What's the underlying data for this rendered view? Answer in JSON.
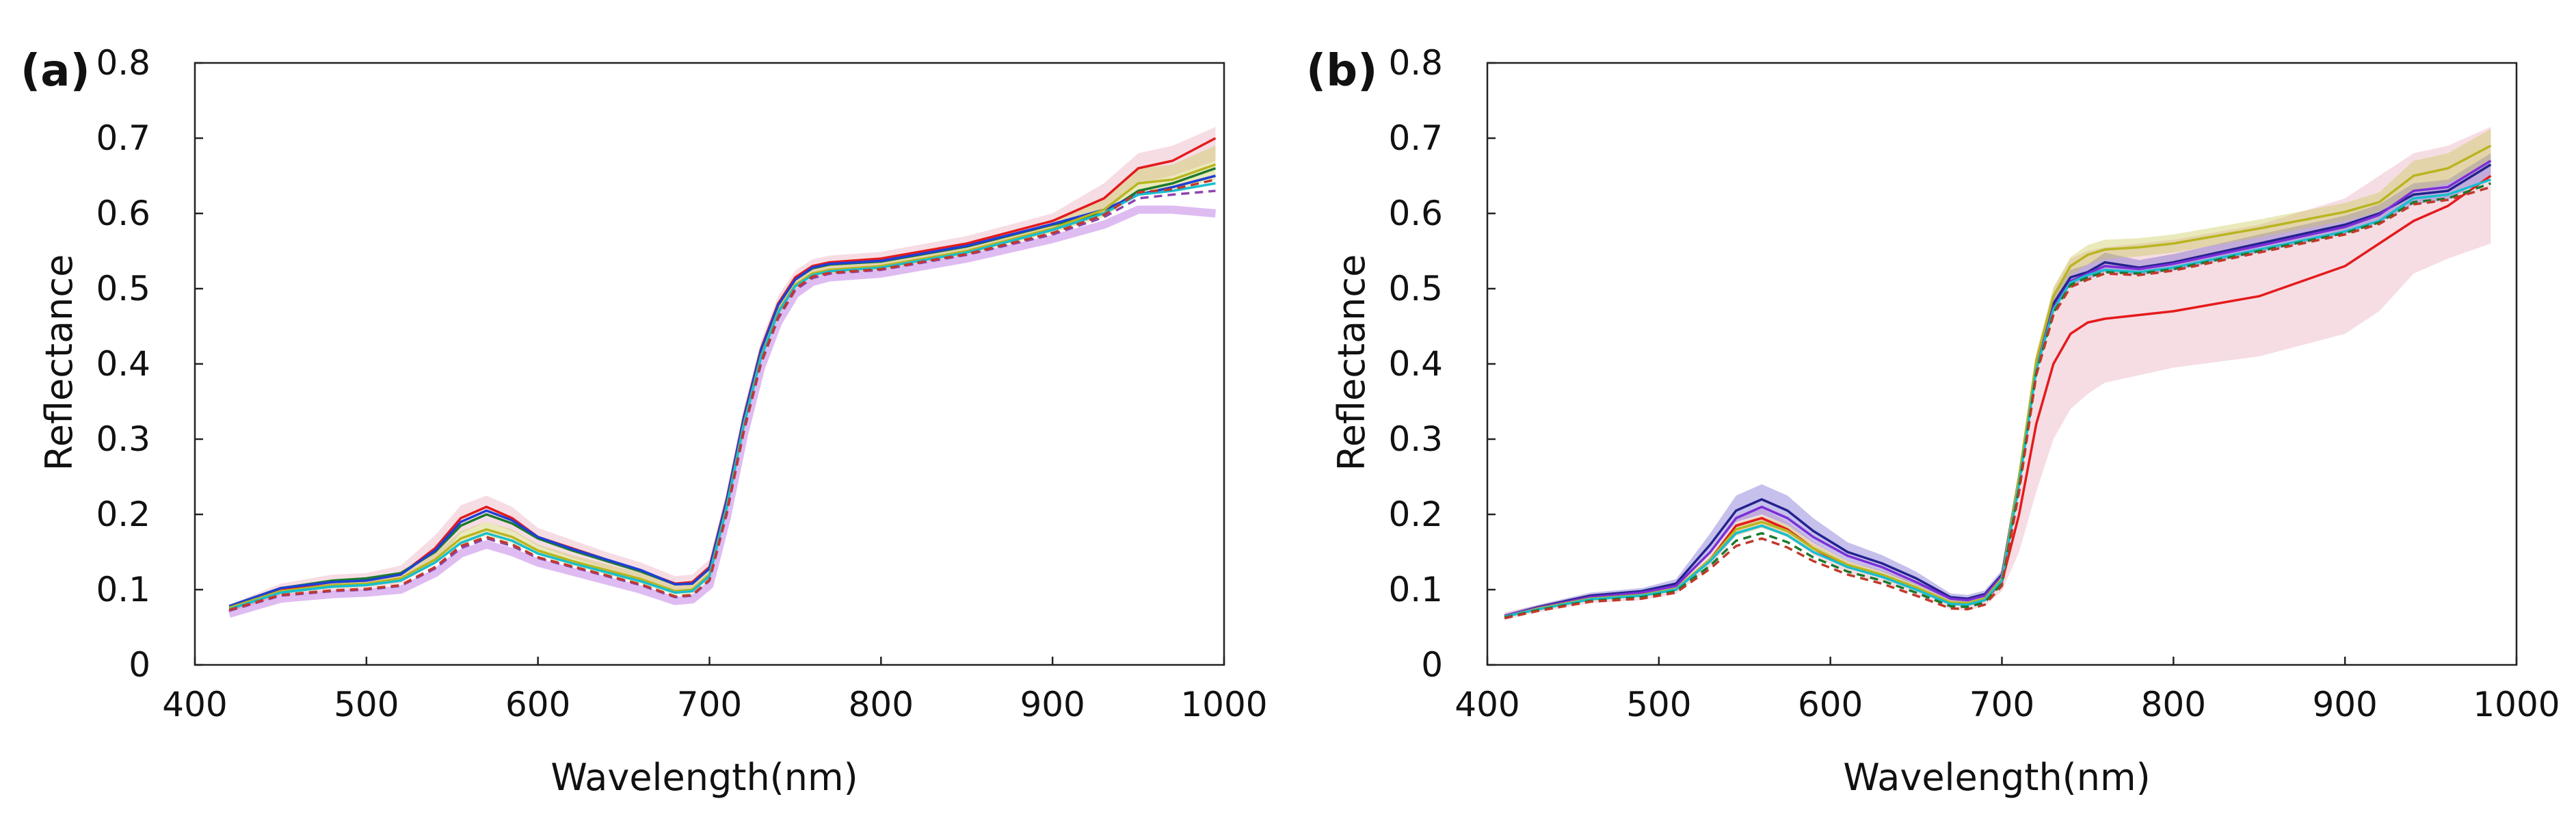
{
  "chart_data": [
    {
      "type": "line",
      "panel_label": "(a)",
      "xlabel": "Wavelength(nm)",
      "ylabel": "Reflectance",
      "xlim": [
        400,
        1000
      ],
      "ylim": [
        0,
        0.8
      ],
      "xticks": [
        400,
        500,
        600,
        700,
        800,
        900,
        1000
      ],
      "xtick_labels": [
        "400",
        "500",
        "600",
        "700",
        "800",
        "900",
        "1000"
      ],
      "yticks": [
        0,
        0.1,
        0.2,
        0.3,
        0.4,
        0.5,
        0.6,
        0.7,
        0.8
      ],
      "ytick_labels": [
        "0",
        "0.1",
        "0.2",
        "0.3",
        "0.4",
        "0.5",
        "0.6",
        "0.7",
        "0.8"
      ],
      "x": [
        420,
        450,
        480,
        500,
        520,
        540,
        555,
        570,
        585,
        600,
        620,
        640,
        660,
        680,
        690,
        700,
        710,
        720,
        730,
        740,
        750,
        760,
        770,
        800,
        850,
        900,
        930,
        950,
        970,
        995
      ],
      "series": [
        {
          "name": "red",
          "color": "#e41a1c",
          "dash": false,
          "values": [
            0.075,
            0.1,
            0.11,
            0.112,
            0.12,
            0.155,
            0.195,
            0.21,
            0.195,
            0.17,
            0.155,
            0.14,
            0.125,
            0.108,
            0.11,
            0.13,
            0.22,
            0.33,
            0.42,
            0.48,
            0.515,
            0.53,
            0.535,
            0.54,
            0.56,
            0.59,
            0.62,
            0.66,
            0.67,
            0.7
          ]
        },
        {
          "name": "dark-green",
          "color": "#1b7a2e",
          "dash": false,
          "values": [
            0.078,
            0.102,
            0.112,
            0.115,
            0.122,
            0.15,
            0.185,
            0.2,
            0.188,
            0.168,
            0.152,
            0.138,
            0.124,
            0.107,
            0.108,
            0.128,
            0.218,
            0.328,
            0.418,
            0.478,
            0.512,
            0.527,
            0.532,
            0.536,
            0.556,
            0.585,
            0.6,
            0.63,
            0.64,
            0.66
          ]
        },
        {
          "name": "blue",
          "color": "#1f3fd6",
          "dash": false,
          "values": [
            0.078,
            0.102,
            0.11,
            0.112,
            0.12,
            0.152,
            0.19,
            0.205,
            0.192,
            0.17,
            0.154,
            0.14,
            0.126,
            0.107,
            0.108,
            0.128,
            0.218,
            0.328,
            0.418,
            0.478,
            0.512,
            0.528,
            0.533,
            0.537,
            0.557,
            0.586,
            0.605,
            0.625,
            0.635,
            0.65
          ]
        },
        {
          "name": "olive",
          "color": "#b8b520",
          "dash": false,
          "values": [
            0.076,
            0.098,
            0.106,
            0.108,
            0.115,
            0.14,
            0.168,
            0.18,
            0.17,
            0.152,
            0.138,
            0.126,
            0.114,
            0.098,
            0.1,
            0.12,
            0.21,
            0.32,
            0.41,
            0.47,
            0.505,
            0.52,
            0.525,
            0.53,
            0.55,
            0.58,
            0.605,
            0.64,
            0.645,
            0.665
          ]
        },
        {
          "name": "teal",
          "color": "#17becf",
          "dash": false,
          "values": [
            0.074,
            0.096,
            0.104,
            0.106,
            0.112,
            0.136,
            0.162,
            0.175,
            0.165,
            0.148,
            0.135,
            0.123,
            0.111,
            0.096,
            0.098,
            0.118,
            0.208,
            0.318,
            0.408,
            0.468,
            0.503,
            0.518,
            0.523,
            0.528,
            0.548,
            0.578,
            0.6,
            0.625,
            0.63,
            0.64
          ]
        },
        {
          "name": "purple-dashed",
          "color": "#8e44ad",
          "dash": true,
          "values": [
            0.072,
            0.092,
            0.098,
            0.1,
            0.105,
            0.128,
            0.155,
            0.168,
            0.158,
            0.142,
            0.13,
            0.118,
            0.106,
            0.09,
            0.092,
            0.112,
            0.2,
            0.31,
            0.4,
            0.46,
            0.498,
            0.514,
            0.52,
            0.525,
            0.545,
            0.572,
            0.595,
            0.62,
            0.625,
            0.63
          ]
        },
        {
          "name": "red-dashed",
          "color": "#c0392b",
          "dash": true,
          "values": [
            0.073,
            0.093,
            0.099,
            0.101,
            0.106,
            0.13,
            0.158,
            0.17,
            0.16,
            0.143,
            0.131,
            0.119,
            0.107,
            0.091,
            0.093,
            0.113,
            0.202,
            0.312,
            0.402,
            0.462,
            0.5,
            0.516,
            0.521,
            0.526,
            0.546,
            0.574,
            0.598,
            0.628,
            0.632,
            0.645
          ]
        }
      ],
      "bands": [
        {
          "name": "pink-band",
          "color": "#e8a6b6",
          "lower": [
            0.07,
            0.092,
            0.1,
            0.102,
            0.108,
            0.135,
            0.175,
            0.19,
            0.178,
            0.158,
            0.142,
            0.128,
            0.114,
            0.098,
            0.1,
            0.12,
            0.208,
            0.318,
            0.408,
            0.468,
            0.504,
            0.519,
            0.524,
            0.529,
            0.548,
            0.576,
            0.6,
            0.64,
            0.65,
            0.67
          ],
          "upper": [
            0.08,
            0.108,
            0.12,
            0.122,
            0.132,
            0.172,
            0.212,
            0.225,
            0.21,
            0.182,
            0.166,
            0.15,
            0.136,
            0.118,
            0.12,
            0.14,
            0.23,
            0.34,
            0.43,
            0.49,
            0.524,
            0.539,
            0.544,
            0.549,
            0.57,
            0.6,
            0.64,
            0.68,
            0.69,
            0.715
          ]
        },
        {
          "name": "violet-band",
          "color": "#b56be0",
          "lower": [
            0.068,
            0.088,
            0.094,
            0.096,
            0.1,
            0.122,
            0.148,
            0.16,
            0.15,
            0.136,
            0.124,
            0.112,
            0.1,
            0.085,
            0.087,
            0.106,
            0.195,
            0.305,
            0.395,
            0.455,
            0.493,
            0.509,
            0.515,
            0.52,
            0.54,
            0.566,
            0.585,
            0.605,
            0.605,
            0.6
          ]
        },
        {
          "name": "olive-band",
          "color": "#c8c450",
          "lower": [
            0.072,
            0.094,
            0.102,
            0.104,
            0.11,
            0.134,
            0.16,
            0.172,
            0.162,
            0.146,
            0.132,
            0.12,
            0.108,
            0.093,
            0.095,
            0.115,
            0.204,
            0.314,
            0.404,
            0.464,
            0.5,
            0.515,
            0.52,
            0.525,
            0.545,
            0.574,
            0.595,
            0.625,
            0.63,
            0.645
          ],
          "upper": [
            0.08,
            0.104,
            0.112,
            0.114,
            0.122,
            0.148,
            0.178,
            0.19,
            0.18,
            0.16,
            0.146,
            0.134,
            0.122,
            0.105,
            0.107,
            0.127,
            0.216,
            0.326,
            0.416,
            0.476,
            0.512,
            0.527,
            0.532,
            0.537,
            0.557,
            0.588,
            0.62,
            0.66,
            0.665,
            0.69
          ]
        }
      ]
    },
    {
      "type": "line",
      "panel_label": "(b)",
      "xlabel": "Wavelength(nm)",
      "ylabel": "Reflectance",
      "xlim": [
        400,
        1000
      ],
      "ylim": [
        0,
        0.8
      ],
      "xticks": [
        400,
        500,
        600,
        700,
        800,
        900,
        1000
      ],
      "xtick_labels": [
        "400",
        "500",
        "600",
        "700",
        "800",
        "900",
        "1000"
      ],
      "yticks": [
        0,
        0.1,
        0.2,
        0.3,
        0.4,
        0.5,
        0.6,
        0.7,
        0.8
      ],
      "ytick_labels": [
        "0",
        "0.1",
        "0.2",
        "0.3",
        "0.4",
        "0.5",
        "0.6",
        "0.7",
        "0.8"
      ],
      "x": [
        410,
        430,
        460,
        490,
        510,
        530,
        545,
        560,
        575,
        590,
        610,
        630,
        650,
        670,
        680,
        690,
        700,
        710,
        720,
        730,
        740,
        750,
        760,
        780,
        800,
        850,
        900,
        920,
        940,
        960,
        985
      ],
      "series": [
        {
          "name": "red",
          "color": "#e41a1c",
          "dash": false,
          "values": [
            0.065,
            0.075,
            0.088,
            0.092,
            0.1,
            0.14,
            0.185,
            0.195,
            0.18,
            0.155,
            0.13,
            0.118,
            0.102,
            0.082,
            0.08,
            0.086,
            0.11,
            0.2,
            0.32,
            0.4,
            0.44,
            0.455,
            0.46,
            0.465,
            0.47,
            0.49,
            0.53,
            0.56,
            0.59,
            0.61,
            0.65
          ]
        },
        {
          "name": "dark-blue",
          "color": "#23238e",
          "dash": false,
          "values": [
            0.065,
            0.077,
            0.092,
            0.098,
            0.108,
            0.16,
            0.205,
            0.22,
            0.205,
            0.178,
            0.15,
            0.135,
            0.115,
            0.09,
            0.088,
            0.094,
            0.12,
            0.25,
            0.4,
            0.48,
            0.515,
            0.522,
            0.535,
            0.528,
            0.535,
            0.56,
            0.585,
            0.6,
            0.625,
            0.63,
            0.665
          ]
        },
        {
          "name": "violet",
          "color": "#7b2fd6",
          "dash": false,
          "values": [
            0.065,
            0.076,
            0.09,
            0.096,
            0.105,
            0.15,
            0.195,
            0.21,
            0.195,
            0.17,
            0.145,
            0.13,
            0.11,
            0.088,
            0.086,
            0.092,
            0.118,
            0.245,
            0.395,
            0.475,
            0.51,
            0.52,
            0.53,
            0.526,
            0.533,
            0.557,
            0.582,
            0.598,
            0.63,
            0.635,
            0.67
          ]
        },
        {
          "name": "olive",
          "color": "#b8b520",
          "dash": false,
          "values": [
            0.064,
            0.075,
            0.088,
            0.093,
            0.101,
            0.14,
            0.18,
            0.19,
            0.178,
            0.155,
            0.133,
            0.12,
            0.103,
            0.083,
            0.082,
            0.088,
            0.115,
            0.25,
            0.405,
            0.49,
            0.53,
            0.545,
            0.552,
            0.555,
            0.56,
            0.58,
            0.602,
            0.615,
            0.65,
            0.66,
            0.69
          ]
        },
        {
          "name": "teal",
          "color": "#17becf",
          "dash": false,
          "values": [
            0.064,
            0.074,
            0.087,
            0.092,
            0.1,
            0.138,
            0.175,
            0.185,
            0.172,
            0.15,
            0.13,
            0.117,
            0.1,
            0.081,
            0.08,
            0.086,
            0.112,
            0.24,
            0.392,
            0.472,
            0.508,
            0.518,
            0.525,
            0.522,
            0.528,
            0.552,
            0.576,
            0.59,
            0.62,
            0.625,
            0.645
          ]
        },
        {
          "name": "green-dashed",
          "color": "#1b7a2e",
          "dash": true,
          "values": [
            0.063,
            0.073,
            0.085,
            0.09,
            0.098,
            0.132,
            0.165,
            0.175,
            0.163,
            0.143,
            0.124,
            0.112,
            0.096,
            0.078,
            0.077,
            0.083,
            0.108,
            0.235,
            0.388,
            0.468,
            0.505,
            0.515,
            0.522,
            0.52,
            0.526,
            0.55,
            0.574,
            0.588,
            0.615,
            0.62,
            0.64
          ]
        },
        {
          "name": "red-dashed",
          "color": "#c0392b",
          "dash": true,
          "values": [
            0.062,
            0.072,
            0.084,
            0.088,
            0.096,
            0.128,
            0.158,
            0.168,
            0.156,
            0.138,
            0.12,
            0.108,
            0.092,
            0.075,
            0.074,
            0.08,
            0.105,
            0.23,
            0.385,
            0.465,
            0.502,
            0.512,
            0.52,
            0.518,
            0.524,
            0.548,
            0.572,
            0.586,
            0.612,
            0.618,
            0.635
          ]
        }
      ],
      "bands": [
        {
          "name": "pink-band",
          "color": "#e8a6b6",
          "lower": [
            0.06,
            0.07,
            0.082,
            0.086,
            0.094,
            0.13,
            0.172,
            0.182,
            0.17,
            0.146,
            0.122,
            0.11,
            0.094,
            0.074,
            0.072,
            0.078,
            0.098,
            0.15,
            0.23,
            0.3,
            0.34,
            0.36,
            0.375,
            0.385,
            0.395,
            0.41,
            0.44,
            0.47,
            0.52,
            0.54,
            0.56
          ],
          "upper": [
            0.07,
            0.08,
            0.094,
            0.098,
            0.106,
            0.15,
            0.198,
            0.208,
            0.19,
            0.164,
            0.138,
            0.126,
            0.11,
            0.09,
            0.088,
            0.094,
            0.122,
            0.25,
            0.41,
            0.5,
            0.54,
            0.55,
            0.555,
            0.56,
            0.565,
            0.585,
            0.62,
            0.65,
            0.68,
            0.69,
            0.715
          ]
        },
        {
          "name": "blue-band",
          "color": "#6a5acd",
          "lower": [
            0.062,
            0.074,
            0.088,
            0.094,
            0.102,
            0.148,
            0.19,
            0.2,
            0.186,
            0.162,
            0.138,
            0.124,
            0.106,
            0.085,
            0.083,
            0.089,
            0.114,
            0.24,
            0.39,
            0.47,
            0.505,
            0.512,
            0.522,
            0.518,
            0.524,
            0.548,
            0.573,
            0.588,
            0.612,
            0.618,
            0.65
          ],
          "upper": [
            0.068,
            0.08,
            0.096,
            0.102,
            0.114,
            0.175,
            0.225,
            0.24,
            0.225,
            0.195,
            0.163,
            0.146,
            0.124,
            0.095,
            0.093,
            0.099,
            0.126,
            0.26,
            0.41,
            0.49,
            0.525,
            0.532,
            0.548,
            0.538,
            0.546,
            0.572,
            0.597,
            0.612,
            0.64,
            0.645,
            0.68
          ]
        },
        {
          "name": "olive-band",
          "color": "#c8c450",
          "lower": [
            0.062,
            0.073,
            0.086,
            0.091,
            0.099,
            0.136,
            0.172,
            0.182,
            0.17,
            0.149,
            0.128,
            0.116,
            0.099,
            0.08,
            0.079,
            0.085,
            0.11,
            0.24,
            0.395,
            0.478,
            0.518,
            0.532,
            0.539,
            0.543,
            0.548,
            0.568,
            0.59,
            0.602,
            0.63,
            0.64,
            0.668
          ],
          "upper": [
            0.066,
            0.077,
            0.09,
            0.095,
            0.103,
            0.144,
            0.188,
            0.198,
            0.186,
            0.161,
            0.138,
            0.124,
            0.107,
            0.086,
            0.085,
            0.091,
            0.12,
            0.26,
            0.415,
            0.502,
            0.542,
            0.558,
            0.565,
            0.567,
            0.572,
            0.592,
            0.614,
            0.628,
            0.67,
            0.68,
            0.712
          ]
        }
      ]
    }
  ]
}
